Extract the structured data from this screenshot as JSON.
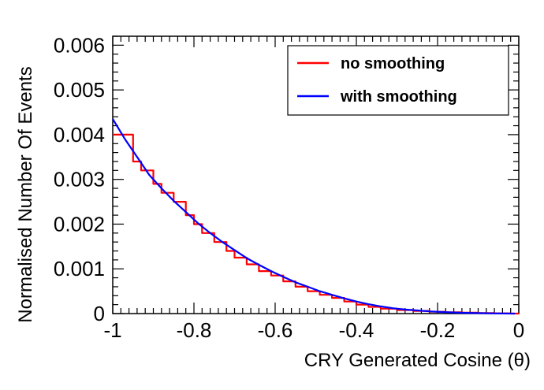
{
  "chart_data": {
    "type": "line",
    "title": "",
    "xlabel": "CRY Generated Cosine (θ)",
    "ylabel": "Normalised Number Of Events",
    "xlim": [
      -1,
      0
    ],
    "ylim": [
      0,
      0.0062
    ],
    "x_ticks": [
      -1,
      -0.8,
      -0.6,
      -0.4,
      -0.2,
      0
    ],
    "x_tick_labels": [
      "-1",
      "-0.8",
      "-0.6",
      "-0.4",
      "-0.2",
      "0"
    ],
    "y_ticks": [
      0,
      0.001,
      0.002,
      0.003,
      0.004,
      0.005,
      0.006
    ],
    "y_tick_labels": [
      "0",
      "0.001",
      "0.002",
      "0.003",
      "0.004",
      "0.005",
      "0.006"
    ],
    "grid": false,
    "legend_position": "top-right",
    "series": [
      {
        "name": "no smoothing",
        "color": "#ff0000",
        "style": "step",
        "x": [
          -1.0,
          -0.95,
          -0.93,
          -0.9,
          -0.88,
          -0.85,
          -0.82,
          -0.8,
          -0.78,
          -0.75,
          -0.72,
          -0.7,
          -0.67,
          -0.64,
          -0.61,
          -0.58,
          -0.55,
          -0.52,
          -0.49,
          -0.46,
          -0.43,
          -0.4,
          -0.37,
          -0.34,
          -0.3,
          -0.26,
          -0.22,
          -0.18,
          -0.14,
          -0.1,
          -0.06,
          -0.02
        ],
        "y": [
          0.004,
          0.0034,
          0.0032,
          0.0029,
          0.0027,
          0.0025,
          0.0022,
          0.002,
          0.0018,
          0.0016,
          0.0014,
          0.00125,
          0.0011,
          0.00095,
          0.00085,
          0.00072,
          0.0006,
          0.0005,
          0.00042,
          0.00035,
          0.00027,
          0.0002,
          0.00015,
          0.00011,
          8e-05,
          6e-05,
          4e-05,
          3e-05,
          2e-05,
          1e-05,
          5e-06,
          0.0
        ]
      },
      {
        "name": "with smoothing",
        "color": "#0000ff",
        "style": "line",
        "x": [
          -1.0,
          -0.97,
          -0.94,
          -0.91,
          -0.88,
          -0.85,
          -0.82,
          -0.79,
          -0.76,
          -0.73,
          -0.7,
          -0.67,
          -0.64,
          -0.61,
          -0.58,
          -0.55,
          -0.52,
          -0.49,
          -0.46,
          -0.43,
          -0.4,
          -0.37,
          -0.34,
          -0.31,
          -0.28,
          -0.25,
          -0.22,
          -0.19,
          -0.16,
          -0.13,
          -0.1,
          -0.07,
          -0.04,
          -0.01
        ],
        "y": [
          0.00435,
          0.0039,
          0.0035,
          0.0031,
          0.0028,
          0.00252,
          0.00227,
          0.00202,
          0.0018,
          0.0016,
          0.00142,
          0.00124,
          0.00109,
          0.00095,
          0.00082,
          0.0007,
          0.0006,
          0.0005,
          0.00042,
          0.00034,
          0.00027,
          0.00021,
          0.00016,
          0.00012,
          9e-05,
          7e-05,
          5e-05,
          3.5e-05,
          2.5e-05,
          1.5e-05,
          1e-05,
          5e-06,
          2e-06,
          0.0
        ]
      }
    ]
  }
}
